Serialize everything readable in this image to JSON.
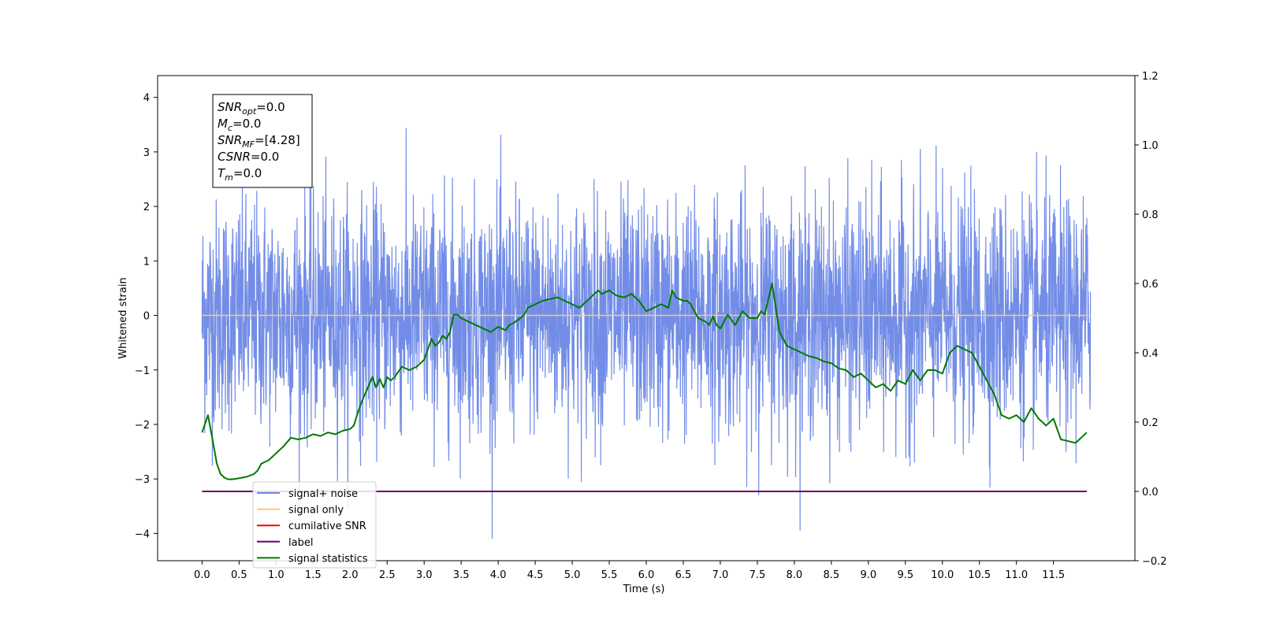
{
  "chart_data": {
    "type": "line",
    "xlabel": "Time (s)",
    "ylabel": "Whitened strain",
    "xlim": [
      -0.6,
      12.6
    ],
    "ylim": [
      -4.5,
      4.4
    ],
    "y2lim": [
      -0.2,
      1.2
    ],
    "x_ticks": [
      "0.0",
      "0.5",
      "1.0",
      "1.5",
      "2.0",
      "2.5",
      "3.0",
      "3.5",
      "4.0",
      "4.5",
      "5.0",
      "5.5",
      "6.0",
      "6.5",
      "7.0",
      "7.5",
      "8.0",
      "8.5",
      "9.0",
      "9.5",
      "10.0",
      "10.5",
      "11.0",
      "11.5"
    ],
    "y_ticks": [
      "−4",
      "−3",
      "−2",
      "−1",
      "0",
      "1",
      "2",
      "3",
      "4"
    ],
    "y2_ticks": [
      "−0.2",
      "0.0",
      "0.2",
      "0.4",
      "0.6",
      "0.8",
      "1.0",
      "1.2"
    ],
    "stats_box": [
      {
        "base": "SNR",
        "sub": "opt",
        "value": "=0.0"
      },
      {
        "base": "M",
        "sub": "c",
        "value": "=0.0"
      },
      {
        "base": "SNR",
        "sub": "MF",
        "value": "=[4.28]"
      },
      {
        "base": "CSNR",
        "sub": "",
        "value": "=0.0"
      },
      {
        "base": "T",
        "sub": "m",
        "value": "=0.0"
      }
    ],
    "legend": {
      "location": "lower-left",
      "entries": [
        {
          "label": "signal+ noise",
          "color": "#6c87e6"
        },
        {
          "label": "signal only",
          "color": "#ffc96b"
        },
        {
          "label": "cumilative SNR",
          "color": "#ff0000"
        },
        {
          "label": "label",
          "color": "#6b006b"
        },
        {
          "label": "signal statistics",
          "color": "#007a00"
        }
      ]
    },
    "series": [
      {
        "name": "signal+ noise",
        "color": "#6c87e6",
        "axis": "left",
        "x_range": [
          0.0,
          12.0
        ],
        "approx_range": [
          -4.1,
          3.7
        ]
      },
      {
        "name": "signal only",
        "color": "#ffc96b",
        "axis": "left",
        "x": [
          0.0,
          12.0
        ],
        "y": [
          0.0,
          0.0
        ]
      },
      {
        "name": "label",
        "color": "#6b006b",
        "axis": "right",
        "x": [
          0.0,
          11.95
        ],
        "y": [
          0.0,
          0.0
        ]
      },
      {
        "name": "signal statistics",
        "color": "#007a00",
        "axis": "right",
        "x": [
          0.0,
          0.08,
          0.15,
          0.2,
          0.25,
          0.3,
          0.35,
          0.4,
          0.45,
          0.5,
          0.6,
          0.7,
          0.75,
          0.8,
          0.9,
          1.0,
          1.1,
          1.2,
          1.3,
          1.4,
          1.5,
          1.6,
          1.7,
          1.8,
          1.9,
          2.0,
          2.05,
          2.1,
          2.15,
          2.2,
          2.3,
          2.35,
          2.4,
          2.45,
          2.5,
          2.55,
          2.6,
          2.7,
          2.75,
          2.8,
          2.9,
          3.0,
          3.1,
          3.15,
          3.2,
          3.25,
          3.3,
          3.35,
          3.4,
          3.45,
          3.5,
          3.6,
          3.7,
          3.8,
          3.9,
          4.0,
          4.1,
          4.15,
          4.2,
          4.3,
          4.35,
          4.4,
          4.5,
          4.6,
          4.7,
          4.8,
          4.9,
          5.0,
          5.1,
          5.2,
          5.3,
          5.35,
          5.4,
          5.5,
          5.6,
          5.7,
          5.8,
          5.9,
          6.0,
          6.1,
          6.2,
          6.3,
          6.35,
          6.4,
          6.5,
          6.55,
          6.6,
          6.7,
          6.8,
          6.85,
          6.9,
          6.95,
          7.0,
          7.1,
          7.2,
          7.3,
          7.4,
          7.5,
          7.55,
          7.6,
          7.7,
          7.75,
          7.8,
          7.9,
          8.0,
          8.1,
          8.2,
          8.3,
          8.4,
          8.5,
          8.6,
          8.7,
          8.8,
          8.9,
          9.0,
          9.1,
          9.2,
          9.3,
          9.4,
          9.5,
          9.6,
          9.7,
          9.8,
          9.9,
          10.0,
          10.1,
          10.2,
          10.3,
          10.4,
          10.5,
          10.6,
          10.7,
          10.8,
          10.9,
          11.0,
          11.1,
          11.2,
          11.3,
          11.4,
          11.5,
          11.6,
          11.7,
          11.8,
          11.95
        ],
        "y": [
          0.17,
          0.22,
          0.14,
          0.08,
          0.05,
          0.04,
          0.035,
          0.035,
          0.036,
          0.038,
          0.042,
          0.05,
          0.06,
          0.08,
          0.09,
          0.11,
          0.13,
          0.155,
          0.15,
          0.155,
          0.165,
          0.16,
          0.17,
          0.165,
          0.175,
          0.18,
          0.19,
          0.225,
          0.255,
          0.28,
          0.33,
          0.3,
          0.325,
          0.3,
          0.33,
          0.32,
          0.33,
          0.36,
          0.355,
          0.35,
          0.36,
          0.38,
          0.44,
          0.42,
          0.43,
          0.45,
          0.44,
          0.46,
          0.51,
          0.51,
          0.5,
          0.49,
          0.48,
          0.47,
          0.46,
          0.475,
          0.465,
          0.48,
          0.485,
          0.5,
          0.51,
          0.53,
          0.54,
          0.55,
          0.555,
          0.56,
          0.55,
          0.54,
          0.53,
          0.55,
          0.57,
          0.58,
          0.57,
          0.58,
          0.565,
          0.56,
          0.57,
          0.55,
          0.52,
          0.53,
          0.54,
          0.53,
          0.58,
          0.56,
          0.55,
          0.55,
          0.54,
          0.5,
          0.49,
          0.48,
          0.505,
          0.48,
          0.47,
          0.51,
          0.48,
          0.52,
          0.5,
          0.5,
          0.52,
          0.51,
          0.6,
          0.53,
          0.46,
          0.42,
          0.41,
          0.4,
          0.39,
          0.385,
          0.375,
          0.37,
          0.355,
          0.35,
          0.33,
          0.34,
          0.32,
          0.3,
          0.31,
          0.29,
          0.32,
          0.31,
          0.35,
          0.32,
          0.35,
          0.35,
          0.34,
          0.4,
          0.42,
          0.41,
          0.4,
          0.36,
          0.32,
          0.28,
          0.22,
          0.21,
          0.22,
          0.2,
          0.24,
          0.21,
          0.19,
          0.21,
          0.15,
          0.145,
          0.14,
          0.17
        ]
      }
    ]
  }
}
